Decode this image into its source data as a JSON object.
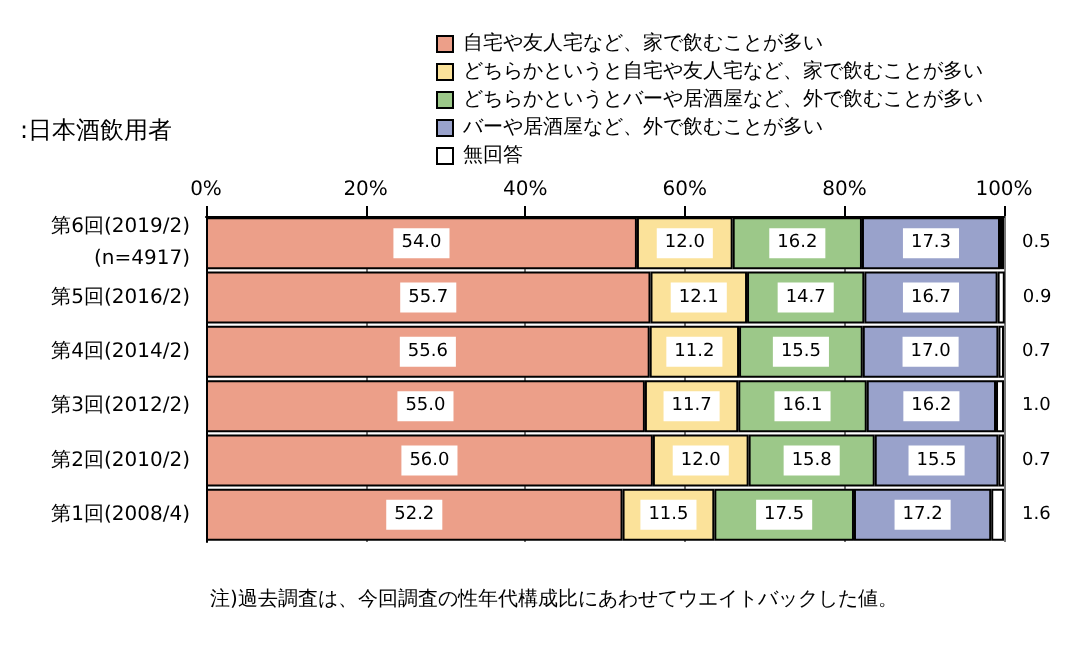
{
  "chart_data": {
    "type": "bar",
    "orientation": "horizontal",
    "stacked": true,
    "subtitle": ":日本酒飲用者",
    "annotations": [
      "注)過去調査は、今回調査の性年代構成比にあわせてウエイトバックした値。"
    ],
    "categories": [
      "第6回(2019/2)\n(n=4917)",
      "第5回(2016/2)",
      "第4回(2014/2)",
      "第3回(2012/2)",
      "第2回(2010/2)",
      "第1回(2008/4)"
    ],
    "series": [
      {
        "name": "自宅や友人宅など、家で飲むことが多い",
        "color": "#ec9f89",
        "values": [
          54.0,
          55.7,
          55.6,
          55.0,
          56.0,
          52.2
        ],
        "value_labels": [
          "54.0",
          "55.7",
          "55.6",
          "55.0",
          "56.0",
          "52.2"
        ]
      },
      {
        "name": "どちらかというと自宅や友人宅など、家で飲むことが多い",
        "color": "#fbe29a",
        "values": [
          12.0,
          12.1,
          11.2,
          11.7,
          12.0,
          11.5
        ],
        "value_labels": [
          "12.0",
          "12.1",
          "11.2",
          "11.7",
          "12.0",
          "11.5"
        ]
      },
      {
        "name": "どちらかというとバーや居酒屋など、外で飲むことが多い",
        "color": "#9cc889",
        "values": [
          16.2,
          14.7,
          15.5,
          16.1,
          15.8,
          17.5
        ],
        "value_labels": [
          "16.2",
          "14.7",
          "15.5",
          "16.1",
          "15.8",
          "17.5"
        ]
      },
      {
        "name": "バーや居酒屋など、外で飲むことが多い",
        "color": "#99a2cb",
        "values": [
          17.3,
          16.7,
          17.0,
          16.2,
          15.5,
          17.2
        ],
        "value_labels": [
          "17.3",
          "16.7",
          "17.0",
          "16.2",
          "15.5",
          "17.2"
        ]
      },
      {
        "name": "無回答",
        "color": "#ffffff",
        "values": [
          0.5,
          0.9,
          0.7,
          1.0,
          0.7,
          1.6
        ],
        "value_labels": [
          "0.5",
          "0.9",
          "0.7",
          "1.0",
          "0.7",
          "1.6"
        ]
      }
    ],
    "xlim": [
      0,
      100
    ],
    "xticks": [
      {
        "value": 0,
        "label": "0%"
      },
      {
        "value": 20,
        "label": "20%"
      },
      {
        "value": 40,
        "label": "40%"
      },
      {
        "value": 60,
        "label": "60%"
      },
      {
        "value": 80,
        "label": "80%"
      },
      {
        "value": 100,
        "label": "100%"
      }
    ],
    "grid": "x",
    "legend": "top"
  }
}
